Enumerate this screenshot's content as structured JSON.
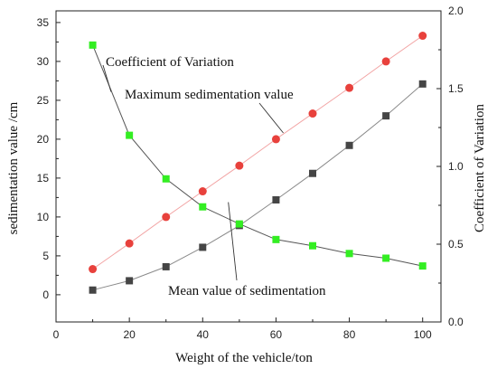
{
  "chart_data": {
    "type": "line",
    "xlabel": "Weight of the vehicle/ton",
    "ylabel": "sedimentation value /cm",
    "y2label": "Coefficient of Variation",
    "xlim": [
      0,
      105
    ],
    "ylim": [
      -3.5,
      36.5
    ],
    "y2lim": [
      0.0,
      2.0
    ],
    "grid": false,
    "legend": "none",
    "x_ticks": [
      0,
      20,
      40,
      60,
      80,
      100
    ],
    "y_ticks": [
      0,
      5,
      10,
      15,
      20,
      25,
      30,
      35
    ],
    "y2_ticks": [
      0.0,
      0.5,
      1.0,
      1.5,
      2.0
    ],
    "y2_tick_labels": [
      "0.0",
      "0.5",
      "1.0",
      "1.5",
      "2.0"
    ],
    "x": [
      10,
      20,
      30,
      40,
      50,
      60,
      70,
      80,
      90,
      100
    ],
    "series": [
      {
        "axis": "left",
        "marker": "circle",
        "color": "#e8413c",
        "line_color": "#f2a3a3",
        "values": [
          3.3,
          6.6,
          10.0,
          13.3,
          16.6,
          20.0,
          23.3,
          26.6,
          30.0,
          33.3
        ]
      },
      {
        "axis": "left",
        "marker": "square",
        "color": "#454545",
        "line_color": "#8a8a8a",
        "values": [
          0.6,
          1.8,
          3.6,
          6.1,
          8.9,
          12.2,
          15.6,
          19.2,
          23.0,
          27.1
        ]
      },
      {
        "axis": "right",
        "marker": "square",
        "color": "#33ee22",
        "line_color": "#555555",
        "values": [
          1.78,
          1.2,
          0.92,
          0.74,
          0.63,
          0.53,
          0.49,
          0.44,
          0.41,
          0.36
        ]
      }
    ],
    "annotations": [
      {
        "text": "Coefficient of Variation",
        "target_series": 2
      },
      {
        "text": "Maximum sedimentation value",
        "target_series": 0
      },
      {
        "text": "Mean value of sedimentation",
        "target_series": 1
      }
    ]
  }
}
